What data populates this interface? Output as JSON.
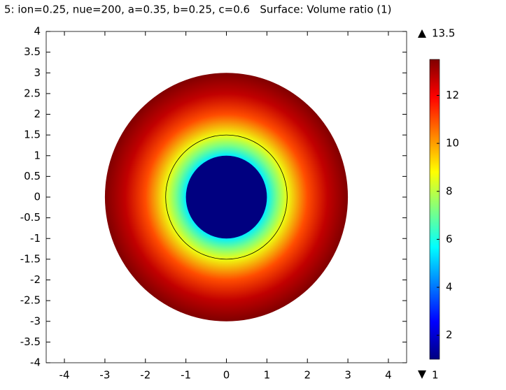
{
  "chart_data": {
    "type": "surface",
    "title": "5: ion=0.25, nue=200, a=0.35, b=0.25, c=0.6   Surface: Volume ratio (1)",
    "xlim": [
      -4.45,
      4.45
    ],
    "ylim": [
      -4,
      4
    ],
    "xticks": [
      -4,
      -3,
      -2,
      -1,
      0,
      1,
      2,
      3,
      4
    ],
    "yticks": [
      -4,
      -3.5,
      -3,
      -2.5,
      -2,
      -1.5,
      -1,
      -0.5,
      0,
      0.5,
      1,
      1.5,
      2,
      2.5,
      3,
      3.5,
      4
    ],
    "inner_region": {
      "radius": 1,
      "value": 1
    },
    "boundary_radius": 1.5,
    "radial_profile": {
      "r": [
        1,
        1.25,
        1.5,
        2,
        2.5,
        3
      ],
      "values": [
        5.5,
        7.2,
        8.6,
        11,
        12.7,
        13.5
      ]
    },
    "colormap": "jet",
    "colorbar": {
      "range": [
        1,
        13.5
      ],
      "ticks": [
        2,
        4,
        6,
        8,
        10,
        12
      ],
      "max": 13.5,
      "min": 1
    }
  }
}
